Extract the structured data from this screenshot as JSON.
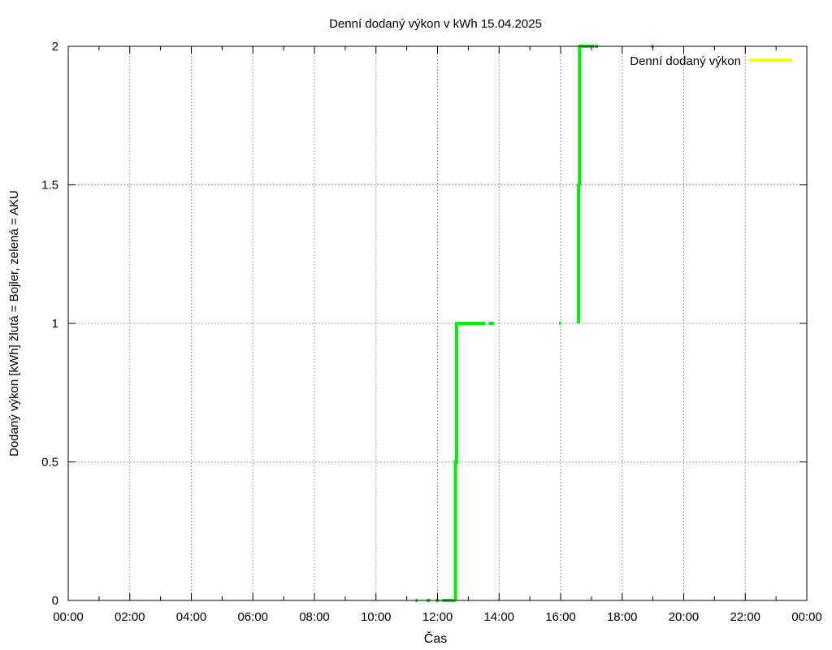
{
  "chart_data": {
    "type": "line",
    "title": "Denní dodaný výkon v kWh 15.04.2025",
    "xlabel": "Čas",
    "ylabel": "Dodaný výkon [kWh]  žlutá = Bojler, zelená = AKU",
    "xlim": [
      "00:00",
      "24:00"
    ],
    "ylim": [
      0,
      2
    ],
    "x_ticks": [
      "00:00",
      "02:00",
      "04:00",
      "06:00",
      "08:00",
      "10:00",
      "12:00",
      "14:00",
      "16:00",
      "18:00",
      "20:00",
      "22:00",
      "00:00"
    ],
    "y_ticks": [
      "0",
      "0.5",
      "1",
      "1.5",
      "2"
    ],
    "grid": true,
    "legend": {
      "placement": "top-right",
      "entries": [
        {
          "label": "Denní dodaný výkon",
          "color": "#ffff00"
        }
      ]
    },
    "series": [
      {
        "name": "Denní dodaný výkon",
        "color": "#ffff00",
        "points": []
      },
      {
        "color": "#00ee00",
        "segments": [
          {
            "x": [
              "11:17",
              "11:21"
            ],
            "y": [
              0,
              0
            ]
          },
          {
            "x": [
              "11:39",
              "11:45"
            ],
            "y": [
              0,
              0
            ]
          },
          {
            "x": [
              "11:57",
              "12:03"
            ],
            "y": [
              0,
              0
            ]
          },
          {
            "x": [
              "12:09",
              "12:35"
            ],
            "y": [
              0,
              0
            ]
          },
          {
            "x": [
              "12:35",
              "12:35",
              "12:37",
              "12:37",
              "13:33"
            ],
            "y": [
              0,
              0.5,
              0.5,
              1,
              1
            ]
          },
          {
            "x": [
              "13:40",
              "13:50"
            ],
            "y": [
              1,
              1
            ]
          },
          {
            "x": [
              "15:57",
              "16:01"
            ],
            "y": [
              1,
              1
            ]
          },
          {
            "x": [
              "16:35",
              "16:35",
              "16:37",
              "16:37",
              "17:05"
            ],
            "y": [
              1,
              1.5,
              1.5,
              2,
              2
            ]
          },
          {
            "x": [
              "17:07",
              "17:13"
            ],
            "y": [
              2,
              2
            ]
          },
          {
            "x": [
              "18:57",
              "19:01"
            ],
            "y": [
              2,
              2
            ]
          }
        ]
      }
    ]
  }
}
